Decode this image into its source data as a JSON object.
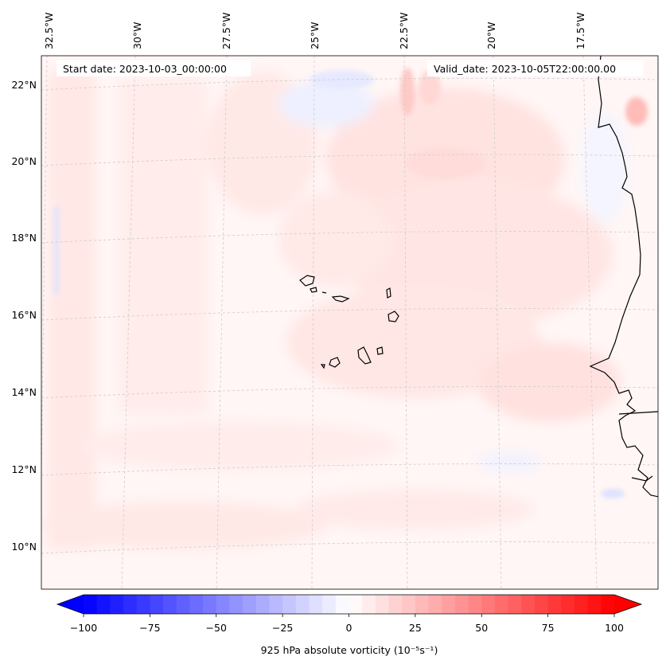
{
  "map": {
    "start_date_label": "Start date: 2023-10-03_00:00:00",
    "valid_date_label": "Valid_date: 2023-10-05T22:00:00.00",
    "lon_labels": [
      "32.5°W",
      "30°W",
      "27.5°W",
      "25°W",
      "22.5°W",
      "20°W",
      "17.5°W"
    ],
    "lat_labels": [
      "22°N",
      "20°N",
      "18°N",
      "16°N",
      "14°N",
      "12°N",
      "10°N"
    ],
    "land_outline_color": "#000000",
    "gridline_color": "#cccccc"
  },
  "colorbar": {
    "label": "925 hPa absolute vorticity (10⁻⁵s⁻¹)",
    "ticks": [
      "−100",
      "−75",
      "−50",
      "−25",
      "0",
      "25",
      "50",
      "75",
      "100"
    ],
    "tick_values": [
      -100,
      -75,
      -50,
      -25,
      0,
      25,
      50,
      75,
      100
    ],
    "min": -100,
    "max": 100,
    "levels": 40,
    "min_color": "#0000ff",
    "mid_color": "#ffffff",
    "max_color": "#ff0000"
  }
}
